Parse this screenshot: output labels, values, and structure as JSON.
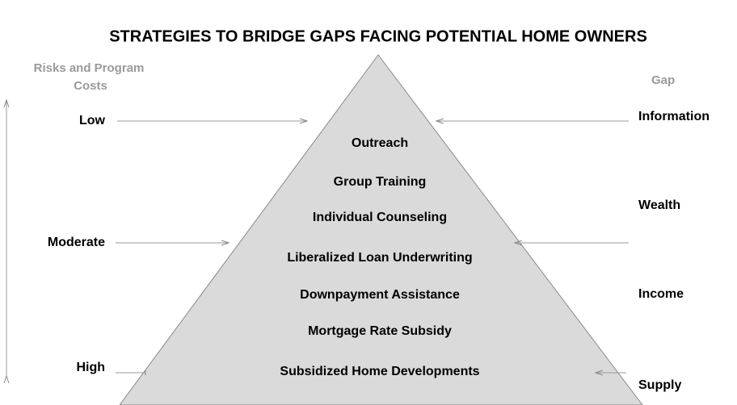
{
  "header": {
    "title": "STRATEGIES TO BRIDGE GAPS FACING POTENTIAL HOME OWNERS"
  },
  "left_axis": {
    "title_lines": [
      "Risks and Program",
      "Costs"
    ],
    "levels": [
      "Low",
      "Moderate",
      "High"
    ]
  },
  "right_axis": {
    "title": "Gap",
    "gaps": [
      "Information",
      "Wealth",
      "Income",
      "Supply"
    ]
  },
  "pyramid": {
    "items": [
      "Outreach",
      "Group Training",
      "Individual Counseling",
      "Liberalized Loan Underwriting",
      "Downpayment Assistance",
      "Mortgage Rate Subsidy",
      "Subsidized Home Developments"
    ]
  }
}
